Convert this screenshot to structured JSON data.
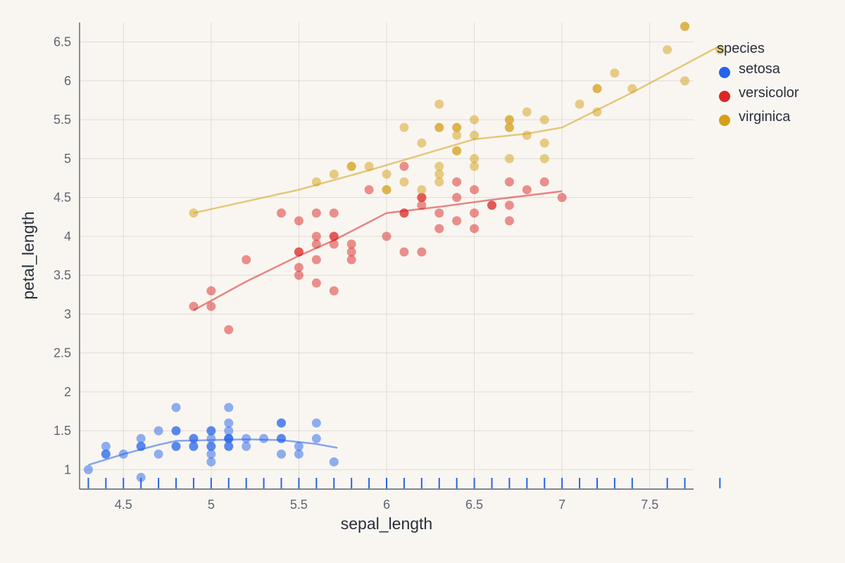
{
  "chart_data": {
    "type": "scatter",
    "title": "",
    "xlabel": "sepal_length",
    "ylabel": "petal_length",
    "xlim": [
      4.25,
      7.75
    ],
    "ylim": [
      0.75,
      6.75
    ],
    "x_ticks": [
      "4.5",
      "5",
      "5.5",
      "6",
      "6.5",
      "7",
      "7.5"
    ],
    "y_ticks": [
      "1",
      "1.5",
      "2",
      "2.5",
      "3",
      "3.5",
      "4",
      "4.5",
      "5",
      "5.5",
      "6",
      "6.5"
    ],
    "grid": true,
    "legend": {
      "title": "species",
      "position": "right"
    },
    "series": [
      {
        "name": "setosa",
        "color": "#2563eb",
        "points": [
          [
            4.3,
            1.0
          ],
          [
            4.4,
            1.2
          ],
          [
            4.4,
            1.2
          ],
          [
            4.4,
            1.3
          ],
          [
            4.5,
            1.2
          ],
          [
            4.6,
            0.9
          ],
          [
            4.6,
            1.3
          ],
          [
            4.6,
            1.3
          ],
          [
            4.6,
            1.4
          ],
          [
            4.7,
            1.5
          ],
          [
            4.7,
            1.2
          ],
          [
            4.8,
            1.8
          ],
          [
            4.8,
            1.5
          ],
          [
            4.8,
            1.5
          ],
          [
            4.8,
            1.3
          ],
          [
            4.8,
            1.3
          ],
          [
            4.9,
            1.4
          ],
          [
            4.9,
            1.3
          ],
          [
            4.9,
            1.3
          ],
          [
            4.9,
            1.4
          ],
          [
            5.0,
            1.5
          ],
          [
            5.0,
            1.5
          ],
          [
            5.0,
            1.4
          ],
          [
            5.0,
            1.3
          ],
          [
            5.0,
            1.3
          ],
          [
            5.0,
            1.2
          ],
          [
            5.0,
            1.1
          ],
          [
            5.1,
            1.8
          ],
          [
            5.1,
            1.6
          ],
          [
            5.1,
            1.5
          ],
          [
            5.1,
            1.4
          ],
          [
            5.1,
            1.4
          ],
          [
            5.1,
            1.4
          ],
          [
            5.1,
            1.3
          ],
          [
            5.1,
            1.3
          ],
          [
            5.2,
            1.4
          ],
          [
            5.2,
            1.3
          ],
          [
            5.3,
            1.4
          ],
          [
            5.4,
            1.6
          ],
          [
            5.4,
            1.6
          ],
          [
            5.4,
            1.4
          ],
          [
            5.4,
            1.4
          ],
          [
            5.4,
            1.2
          ],
          [
            5.5,
            1.3
          ],
          [
            5.5,
            1.2
          ],
          [
            5.6,
            1.6
          ],
          [
            5.6,
            1.4
          ],
          [
            5.7,
            1.1
          ]
        ],
        "trend": [
          [
            4.3,
            1.06
          ],
          [
            4.5,
            1.2
          ],
          [
            4.7,
            1.32
          ],
          [
            4.8,
            1.37
          ],
          [
            5.0,
            1.38
          ],
          [
            5.2,
            1.39
          ],
          [
            5.4,
            1.38
          ],
          [
            5.6,
            1.33
          ],
          [
            5.72,
            1.28
          ]
        ]
      },
      {
        "name": "versicolor",
        "color": "#dc2626",
        "points": [
          [
            4.9,
            3.1
          ],
          [
            5.0,
            3.3
          ],
          [
            5.0,
            3.1
          ],
          [
            5.1,
            2.8
          ],
          [
            5.2,
            3.7
          ],
          [
            5.4,
            4.3
          ],
          [
            5.5,
            3.8
          ],
          [
            5.5,
            3.8
          ],
          [
            5.5,
            4.2
          ],
          [
            5.5,
            3.6
          ],
          [
            5.5,
            3.5
          ],
          [
            5.6,
            4.3
          ],
          [
            5.6,
            4.0
          ],
          [
            5.6,
            3.9
          ],
          [
            5.6,
            3.7
          ],
          [
            5.6,
            3.4
          ],
          [
            5.7,
            4.3
          ],
          [
            5.7,
            4.0
          ],
          [
            5.7,
            4.0
          ],
          [
            5.7,
            3.9
          ],
          [
            5.7,
            3.3
          ],
          [
            5.8,
            3.9
          ],
          [
            5.8,
            3.8
          ],
          [
            5.8,
            3.7
          ],
          [
            5.9,
            4.6
          ],
          [
            6.0,
            4.0
          ],
          [
            6.1,
            4.9
          ],
          [
            6.1,
            4.3
          ],
          [
            6.1,
            4.3
          ],
          [
            6.1,
            3.8
          ],
          [
            6.2,
            4.5
          ],
          [
            6.2,
            4.5
          ],
          [
            6.2,
            4.4
          ],
          [
            6.2,
            3.8
          ],
          [
            6.3,
            4.3
          ],
          [
            6.3,
            4.1
          ],
          [
            6.4,
            4.7
          ],
          [
            6.4,
            4.5
          ],
          [
            6.4,
            4.2
          ],
          [
            6.5,
            4.6
          ],
          [
            6.5,
            4.3
          ],
          [
            6.5,
            4.1
          ],
          [
            6.6,
            4.4
          ],
          [
            6.6,
            4.4
          ],
          [
            6.7,
            4.7
          ],
          [
            6.7,
            4.4
          ],
          [
            6.7,
            4.2
          ],
          [
            6.8,
            4.6
          ],
          [
            6.9,
            4.7
          ],
          [
            7.0,
            4.5
          ]
        ],
        "trend": [
          [
            4.9,
            3.05
          ],
          [
            5.2,
            3.42
          ],
          [
            5.5,
            3.75
          ],
          [
            5.7,
            3.95
          ],
          [
            6.0,
            4.3
          ],
          [
            6.3,
            4.38
          ],
          [
            6.6,
            4.47
          ],
          [
            7.0,
            4.58
          ]
        ]
      },
      {
        "name": "virginica",
        "color": "#d4a017",
        "points": [
          [
            4.9,
            4.3
          ],
          [
            5.6,
            4.7
          ],
          [
            5.7,
            4.8
          ],
          [
            5.8,
            4.9
          ],
          [
            5.8,
            4.9
          ],
          [
            5.9,
            4.9
          ],
          [
            6.0,
            4.6
          ],
          [
            6.0,
            4.8
          ],
          [
            6.0,
            4.6
          ],
          [
            6.1,
            5.4
          ],
          [
            6.1,
            4.7
          ],
          [
            6.2,
            5.2
          ],
          [
            6.2,
            4.6
          ],
          [
            6.3,
            5.7
          ],
          [
            6.3,
            5.4
          ],
          [
            6.3,
            5.4
          ],
          [
            6.3,
            4.9
          ],
          [
            6.3,
            4.8
          ],
          [
            6.3,
            4.7
          ],
          [
            6.4,
            5.4
          ],
          [
            6.4,
            5.4
          ],
          [
            6.4,
            5.3
          ],
          [
            6.4,
            5.1
          ],
          [
            6.4,
            5.1
          ],
          [
            6.5,
            5.5
          ],
          [
            6.5,
            5.3
          ],
          [
            6.5,
            5.0
          ],
          [
            6.5,
            4.9
          ],
          [
            6.7,
            5.5
          ],
          [
            6.7,
            5.5
          ],
          [
            6.7,
            5.4
          ],
          [
            6.7,
            5.4
          ],
          [
            6.7,
            5.0
          ],
          [
            6.8,
            5.6
          ],
          [
            6.8,
            5.3
          ],
          [
            6.9,
            5.5
          ],
          [
            6.9,
            5.2
          ],
          [
            6.9,
            5.0
          ],
          [
            7.1,
            5.7
          ],
          [
            7.2,
            5.9
          ],
          [
            7.2,
            5.9
          ],
          [
            7.2,
            5.6
          ],
          [
            7.3,
            6.1
          ],
          [
            7.4,
            5.9
          ],
          [
            7.6,
            6.4
          ],
          [
            7.7,
            6.7
          ],
          [
            7.7,
            6.7
          ],
          [
            7.7,
            6.0
          ],
          [
            7.9,
            6.4
          ]
        ],
        "trend": [
          [
            4.9,
            4.3
          ],
          [
            5.5,
            4.6
          ],
          [
            5.9,
            4.85
          ],
          [
            6.2,
            5.05
          ],
          [
            6.5,
            5.25
          ],
          [
            6.8,
            5.32
          ],
          [
            7.0,
            5.4
          ],
          [
            7.4,
            5.85
          ],
          [
            7.9,
            6.45
          ]
        ]
      }
    ]
  }
}
